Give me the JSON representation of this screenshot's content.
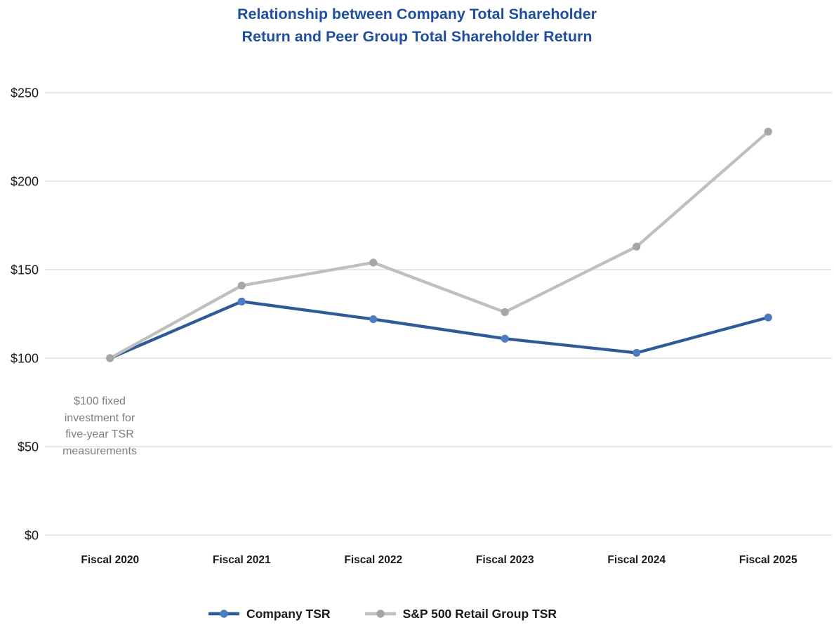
{
  "title": {
    "line1": "Relationship between Company Total Shareholder",
    "line2": "Return and Peer Group Total Shareholder Return"
  },
  "annotation": {
    "text": "$100 fixed\ninvestment for\nfive-year TSR\nmeasurements"
  },
  "colors": {
    "title": "#1F4E9F",
    "grid": "#D9D9D9",
    "axis_text": "#1A1A1A",
    "annotation": "#7F7F7F",
    "background": "#FFFFFF"
  },
  "chart_data": {
    "type": "line",
    "title": "Relationship between Company Total Shareholder Return and Peer Group Total Shareholder Return",
    "categories": [
      "Fiscal 2020",
      "Fiscal 2021",
      "Fiscal 2022",
      "Fiscal 2023",
      "Fiscal 2024",
      "Fiscal 2025"
    ],
    "series": [
      {
        "name": "Company TSR",
        "values": [
          100,
          132,
          122,
          111,
          103,
          123
        ],
        "line_color": "#2E5B97",
        "marker_color": "#4A7EC0"
      },
      {
        "name": "S&P 500 Retail Group TSR",
        "values": [
          100,
          141,
          154,
          126,
          163,
          228
        ],
        "line_color": "#BFBFBF",
        "marker_color": "#A6A6A6"
      }
    ],
    "xlabel": "",
    "ylabel": "",
    "ylim": [
      0,
      250
    ],
    "yticks": [
      0,
      50,
      100,
      150,
      200,
      250
    ],
    "ytick_labels": [
      "$0",
      "$50",
      "$100",
      "$150",
      "$200",
      "$250"
    ],
    "grid": true,
    "legend_position": "bottom"
  }
}
